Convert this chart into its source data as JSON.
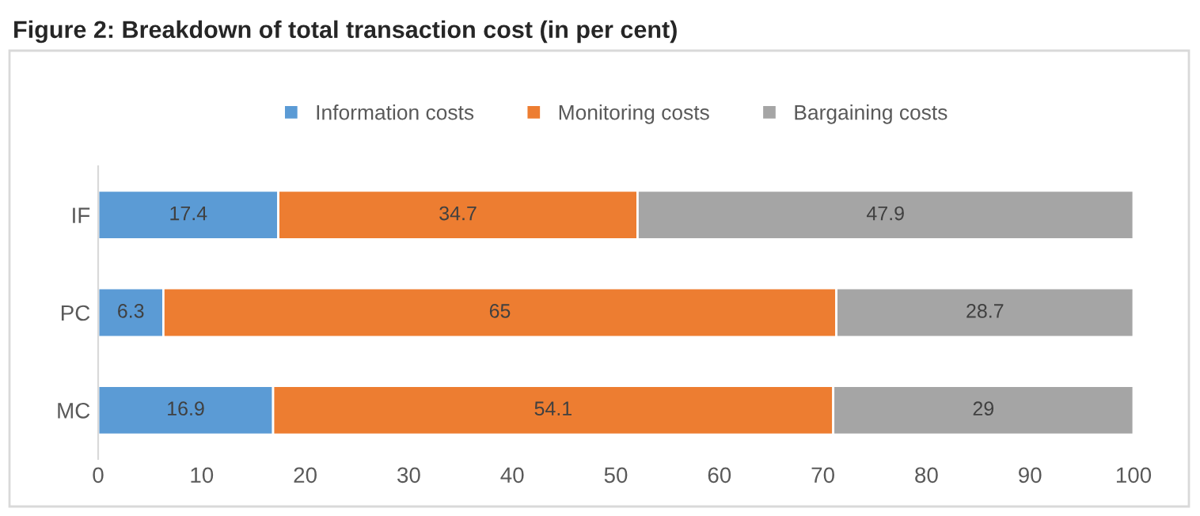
{
  "chart_data": {
    "type": "bar",
    "orientation": "horizontal",
    "stacked": true,
    "title": "Figure 2: Breakdown of total transaction cost (in per cent)",
    "categories": [
      "IF",
      "PC",
      "MC"
    ],
    "series": [
      {
        "name": "Information costs",
        "color": "#5b9bd5",
        "values": [
          17.4,
          6.3,
          16.9
        ]
      },
      {
        "name": "Monitoring costs",
        "color": "#ed7d31",
        "values": [
          34.7,
          65,
          54.1
        ]
      },
      {
        "name": "Bargaining costs",
        "color": "#a5a5a5",
        "values": [
          47.9,
          28.7,
          29
        ]
      }
    ],
    "xlim": [
      0,
      100
    ],
    "xticks": [
      0,
      10,
      20,
      30,
      40,
      50,
      60,
      70,
      80,
      90,
      100
    ],
    "data_labels": true,
    "legend": "top",
    "grid": false
  }
}
